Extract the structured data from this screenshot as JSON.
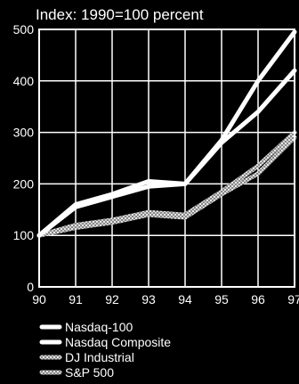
{
  "chart_data": {
    "type": "line",
    "title": "Index: 1990=100 percent",
    "x": [
      "90",
      "91",
      "92",
      "93",
      "94",
      "95",
      "96",
      "97"
    ],
    "ylim": [
      0,
      500
    ],
    "yticks": [
      "0",
      "100",
      "200",
      "300",
      "400",
      "500"
    ],
    "grid": true,
    "legend_position": "bottom-left",
    "series": [
      {
        "name": "Nasdaq-100",
        "values": [
          100,
          160,
          180,
          205,
          200,
          285,
          400,
          495
        ],
        "color": "#ffffff",
        "style": "solid"
      },
      {
        "name": "Nasdaq Composite",
        "values": [
          100,
          155,
          175,
          195,
          200,
          280,
          340,
          420
        ],
        "color": "#ffffff",
        "style": "solid"
      },
      {
        "name": "DJ Industrial",
        "values": [
          100,
          120,
          130,
          145,
          140,
          185,
          235,
          300
        ],
        "color": "#cccccc",
        "style": "textured"
      },
      {
        "name": "S&P 500",
        "values": [
          100,
          115,
          125,
          140,
          135,
          180,
          220,
          290
        ],
        "color": "#aaaaaa",
        "style": "textured"
      }
    ]
  }
}
